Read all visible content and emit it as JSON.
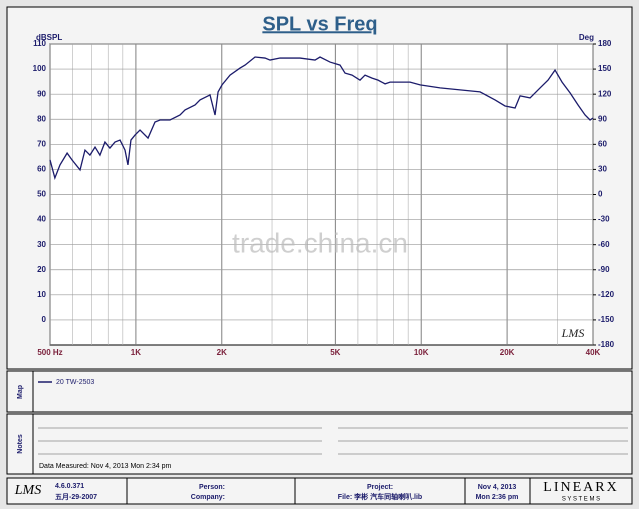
{
  "chart_data": {
    "type": "line",
    "title": "SPL vs Freq",
    "y_label": "dBSPL",
    "y2_label": "Deg",
    "log_x": true,
    "grid": true,
    "logo": "LMS",
    "x": [
      500,
      520,
      542,
      574,
      597,
      637,
      663,
      690,
      719,
      748,
      779,
      811,
      845,
      880,
      916,
      938,
      961,
      993,
      1034,
      1103,
      1167,
      1215,
      1317,
      1428,
      1487,
      1612,
      1678,
      1819,
      1894,
      1941,
      2004,
      2138,
      2317,
      2413,
      2616,
      2836,
      2952,
      3200,
      3761,
      4245,
      4419,
      4791,
      5193,
      5407,
      5722,
      6103,
      6355,
      6726,
      7059,
      7470,
      7777,
      8432,
      9141,
      9909,
      11641,
      13678,
      16080,
      18146,
      19667,
      21328,
      22206,
      24071,
      26094,
      27832,
      29444,
      31159,
      33242,
      35458,
      37520,
      39058,
      40000
    ],
    "series": [
      {
        "name": "20 TW-2503",
        "color": "#1c1c6b",
        "values": [
          63.8,
          56.6,
          61.8,
          66.5,
          63.8,
          59.8,
          67.7,
          65.7,
          68.9,
          65.7,
          70.9,
          68.5,
          70.9,
          71.7,
          67.7,
          61.8,
          71.7,
          73.7,
          75.7,
          72.5,
          78.9,
          79.7,
          79.7,
          81.7,
          83.7,
          85.7,
          87.7,
          89.7,
          81.7,
          90.9,
          93.7,
          97.6,
          100.4,
          101.6,
          104.8,
          104.4,
          103.6,
          104.4,
          104.4,
          103.6,
          104.8,
          102.8,
          101.6,
          98.4,
          97.6,
          95.6,
          97.6,
          96.4,
          95.6,
          94.1,
          94.8,
          94.8,
          94.8,
          93.7,
          92.5,
          91.7,
          90.9,
          87.7,
          85.3,
          84.5,
          89.3,
          88.5,
          92.5,
          95.6,
          99.6,
          94.8,
          90.5,
          85.7,
          81.7,
          79.7,
          80.5
        ]
      }
    ],
    "xlim": [
      500,
      40000
    ],
    "xticks": [
      {
        "value": 500,
        "label": "500  Hz"
      },
      {
        "value": 1000,
        "label": "1K"
      },
      {
        "value": 2000,
        "label": "2K"
      },
      {
        "value": 5000,
        "label": "5K"
      },
      {
        "value": 10000,
        "label": "10K"
      },
      {
        "value": 20000,
        "label": "20K"
      },
      {
        "value": 40000,
        "label": "40K"
      }
    ],
    "ylim": [
      -10,
      110
    ],
    "yticks": [
      0,
      10,
      20,
      30,
      40,
      50,
      60,
      70,
      80,
      90,
      100,
      110
    ],
    "y2lim": [
      -180,
      180
    ],
    "y2ticks": [
      -180,
      -150,
      -120,
      -90,
      -60,
      -30,
      0,
      30,
      60,
      90,
      120,
      150,
      180
    ]
  },
  "watermark": "trade.china.cn",
  "panel": {
    "map_label": "Map",
    "notes_label": "Notes",
    "data_measured": "Data Measured: Nov  4, 2013  Mon  2:34 pm"
  },
  "footer": {
    "logo": "LMS",
    "version": "4.6.0.371",
    "build_date": "五月-29-2007",
    "person": "Person:",
    "company": "Company:",
    "project": "Project:",
    "file": "File: 李彬 汽车同轴喇叭.lib",
    "date": "Nov  4, 2013",
    "time": "Mon  2:36 pm",
    "brand": "LINEARX",
    "brand_sub": "S Y S T E M S"
  }
}
